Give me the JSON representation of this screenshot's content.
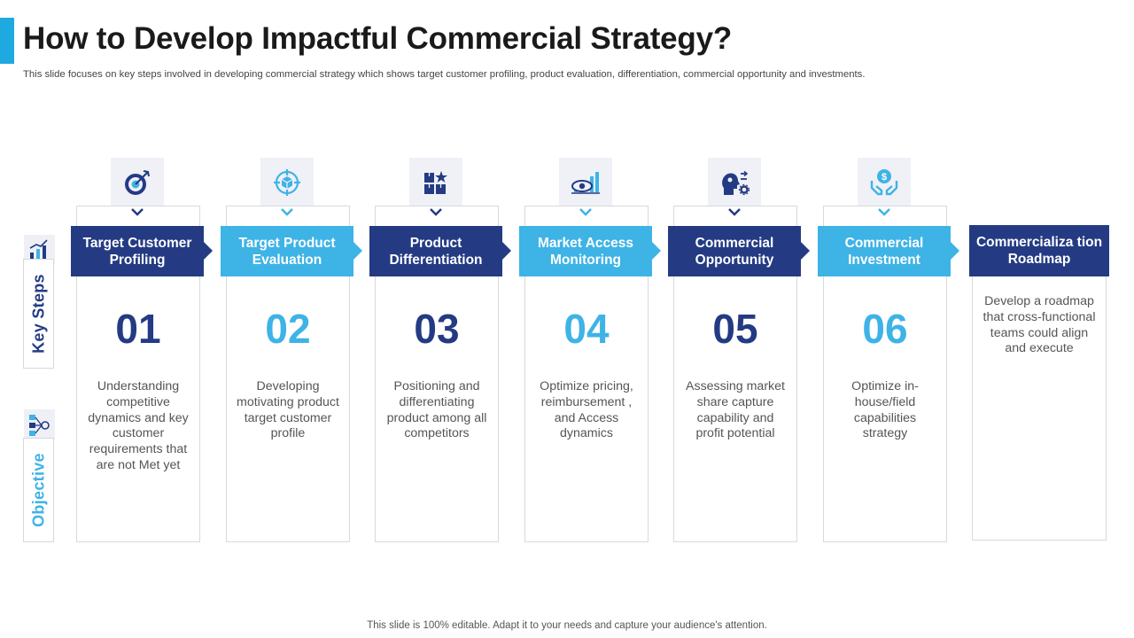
{
  "title": "How to Develop Impactful Commercial Strategy?",
  "subtitle": "This slide focuses on key steps involved in developing commercial strategy which shows target customer profiling, product evaluation, differentiation, commercial opportunity and investments.",
  "side_labels": {
    "key_steps": "Key Steps",
    "objective": "Objective"
  },
  "colors": {
    "navy": "#243b84",
    "sky": "#3eb3e6",
    "accent": "#1fa9e1"
  },
  "steps": [
    {
      "header": "Target Customer Profiling",
      "number": "01",
      "icon": "target-icon",
      "objective": "Understanding competitive dynamics and key customer requirements that are not Met yet"
    },
    {
      "header": "Target Product Evaluation",
      "number": "02",
      "icon": "crosshair-box-icon",
      "objective": "Developing motivating product target customer profile"
    },
    {
      "header": "Product Differentiation",
      "number": "03",
      "icon": "boxes-star-icon",
      "objective": "Positioning and differentiating product among all competitors"
    },
    {
      "header": "Market Access Monitoring",
      "number": "04",
      "icon": "eye-chart-icon",
      "objective": "Optimize pricing, reimbursement , and Access dynamics"
    },
    {
      "header": "Commercial Opportunity",
      "number": "05",
      "icon": "head-gears-icon",
      "objective": "Assessing market share capture capability and profit potential"
    },
    {
      "header": "Commercial Investment",
      "number": "06",
      "icon": "hands-dollar-icon",
      "objective": "Optimize in-house/field capabilities strategy"
    }
  ],
  "final_step": {
    "header": "Commercializa tion Roadmap",
    "objective": "Develop a roadmap that cross-functional teams could align and execute"
  },
  "footer": "This slide is 100% editable. Adapt it to your needs and capture your audience's attention."
}
